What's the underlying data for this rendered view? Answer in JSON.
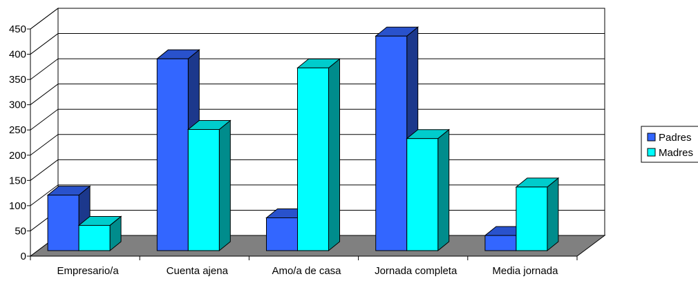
{
  "chart_data": {
    "type": "bar",
    "style": "3d-clustered-column",
    "categories": [
      "Empresario/a",
      "Cuenta ajena",
      "Amo/a de casa",
      "Jornada completa",
      "Media jornada"
    ],
    "series": [
      {
        "name": "Padres",
        "values": [
          110,
          380,
          65,
          425,
          30
        ],
        "color": "#3366FF"
      },
      {
        "name": "Madres",
        "values": [
          50,
          240,
          362,
          222,
          126
        ],
        "color": "#00FFFF"
      }
    ],
    "yticks": [
      "0",
      "50",
      "100",
      "150",
      "200",
      "250",
      "300",
      "350",
      "400",
      "450"
    ],
    "ylim": [
      0,
      450
    ],
    "title": "",
    "xlabel": "",
    "ylabel": "",
    "grid": true,
    "legend_position": "right",
    "floor_color": "#808080"
  }
}
